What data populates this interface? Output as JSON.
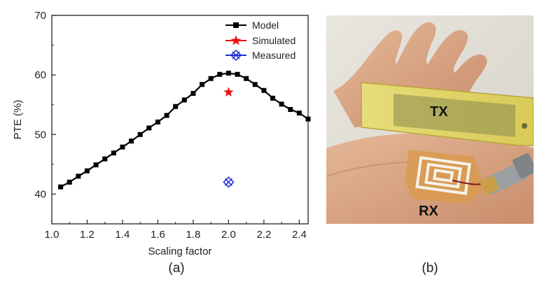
{
  "chart_data": {
    "type": "scatter",
    "title": "",
    "xlabel": "Scaling factor",
    "ylabel": "PTE (%)",
    "xlim": [
      1.0,
      2.45
    ],
    "ylim": [
      35,
      70
    ],
    "xticks": [
      "1.0",
      "1.2",
      "1.4",
      "1.6",
      "1.8",
      "2.0",
      "2.2",
      "2.4"
    ],
    "yticks": [
      "40",
      "50",
      "60",
      "70"
    ],
    "grid": false,
    "legend_position": "top-right",
    "series": [
      {
        "name": "Model",
        "color": "#000000",
        "marker": "square",
        "line": true,
        "points": [
          [
            1.05,
            41.2
          ],
          [
            1.1,
            42.0
          ],
          [
            1.15,
            43.0
          ],
          [
            1.2,
            43.9
          ],
          [
            1.25,
            44.9
          ],
          [
            1.3,
            45.9
          ],
          [
            1.35,
            46.9
          ],
          [
            1.4,
            47.9
          ],
          [
            1.45,
            48.9
          ],
          [
            1.5,
            50.0
          ],
          [
            1.55,
            51.1
          ],
          [
            1.6,
            52.1
          ],
          [
            1.65,
            53.2
          ],
          [
            1.7,
            54.7
          ],
          [
            1.75,
            55.8
          ],
          [
            1.8,
            56.9
          ],
          [
            1.85,
            58.4
          ],
          [
            1.9,
            59.4
          ],
          [
            1.95,
            60.1
          ],
          [
            2.0,
            60.3
          ],
          [
            2.05,
            60.1
          ],
          [
            2.1,
            59.4
          ],
          [
            2.15,
            58.4
          ],
          [
            2.2,
            57.4
          ],
          [
            2.25,
            56.1
          ],
          [
            2.3,
            55.1
          ],
          [
            2.35,
            54.2
          ],
          [
            2.4,
            53.6
          ],
          [
            2.45,
            52.6
          ]
        ]
      },
      {
        "name": "Simulated",
        "color": "#ee1111",
        "marker": "star",
        "line": false,
        "points": [
          [
            2.0,
            57.1
          ]
        ]
      },
      {
        "name": "Measured",
        "color": "#1f2fd6",
        "marker": "crossed-square",
        "line": false,
        "points": [
          [
            2.0,
            42.0
          ]
        ]
      }
    ]
  },
  "panels": {
    "a_label": "(a)",
    "b_label": "(b)"
  },
  "photo": {
    "tx_label": "TX",
    "rx_label": "RX"
  }
}
